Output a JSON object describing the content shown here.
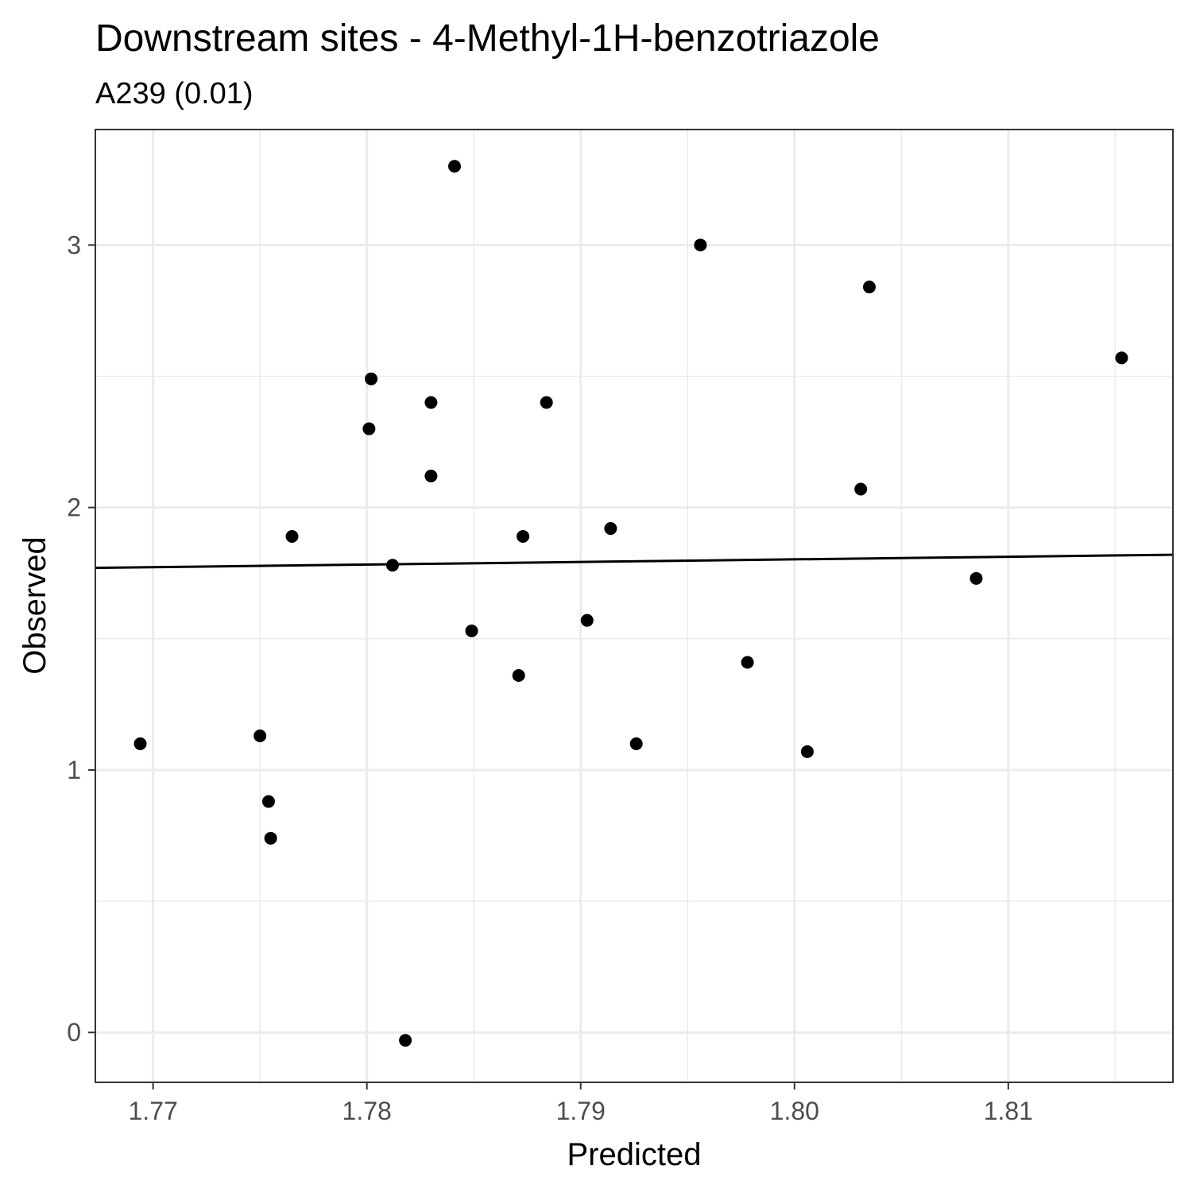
{
  "chart_data": {
    "type": "scatter",
    "title": "Downstream sites - 4-Methyl-1H-benzotriazole",
    "subtitle": "A239 (0.01)",
    "xlabel": "Predicted",
    "ylabel": "Observed",
    "xlim": [
      1.7673,
      1.8177
    ],
    "ylim": [
      -0.19,
      3.44
    ],
    "x_ticks": [
      1.77,
      1.78,
      1.79,
      1.8,
      1.81
    ],
    "x_tick_labels": [
      "1.77",
      "1.78",
      "1.79",
      "1.80",
      "1.81"
    ],
    "y_ticks": [
      0,
      1,
      2,
      3
    ],
    "y_tick_labels": [
      "0",
      "1",
      "2",
      "3"
    ],
    "grid": true,
    "points": [
      {
        "x": 1.7694,
        "y": 1.1
      },
      {
        "x": 1.775,
        "y": 1.13
      },
      {
        "x": 1.7754,
        "y": 0.88
      },
      {
        "x": 1.7755,
        "y": 0.74
      },
      {
        "x": 1.7765,
        "y": 1.89
      },
      {
        "x": 1.7801,
        "y": 2.3
      },
      {
        "x": 1.7802,
        "y": 2.49
      },
      {
        "x": 1.7812,
        "y": 1.78
      },
      {
        "x": 1.7818,
        "y": -0.03
      },
      {
        "x": 1.783,
        "y": 2.4
      },
      {
        "x": 1.783,
        "y": 2.12
      },
      {
        "x": 1.7841,
        "y": 3.3
      },
      {
        "x": 1.7849,
        "y": 1.53
      },
      {
        "x": 1.7871,
        "y": 1.36
      },
      {
        "x": 1.7873,
        "y": 1.89
      },
      {
        "x": 1.7884,
        "y": 2.4
      },
      {
        "x": 1.7903,
        "y": 1.57
      },
      {
        "x": 1.7914,
        "y": 1.92
      },
      {
        "x": 1.7926,
        "y": 1.1
      },
      {
        "x": 1.7956,
        "y": 3.0
      },
      {
        "x": 1.7978,
        "y": 1.41
      },
      {
        "x": 1.8006,
        "y": 1.07
      },
      {
        "x": 1.8031,
        "y": 2.07
      },
      {
        "x": 1.8035,
        "y": 2.84
      },
      {
        "x": 1.8085,
        "y": 1.73
      },
      {
        "x": 1.8153,
        "y": 2.57
      }
    ],
    "fit_line": {
      "x": [
        1.7673,
        1.8177
      ],
      "y": [
        1.77,
        1.82
      ]
    }
  }
}
